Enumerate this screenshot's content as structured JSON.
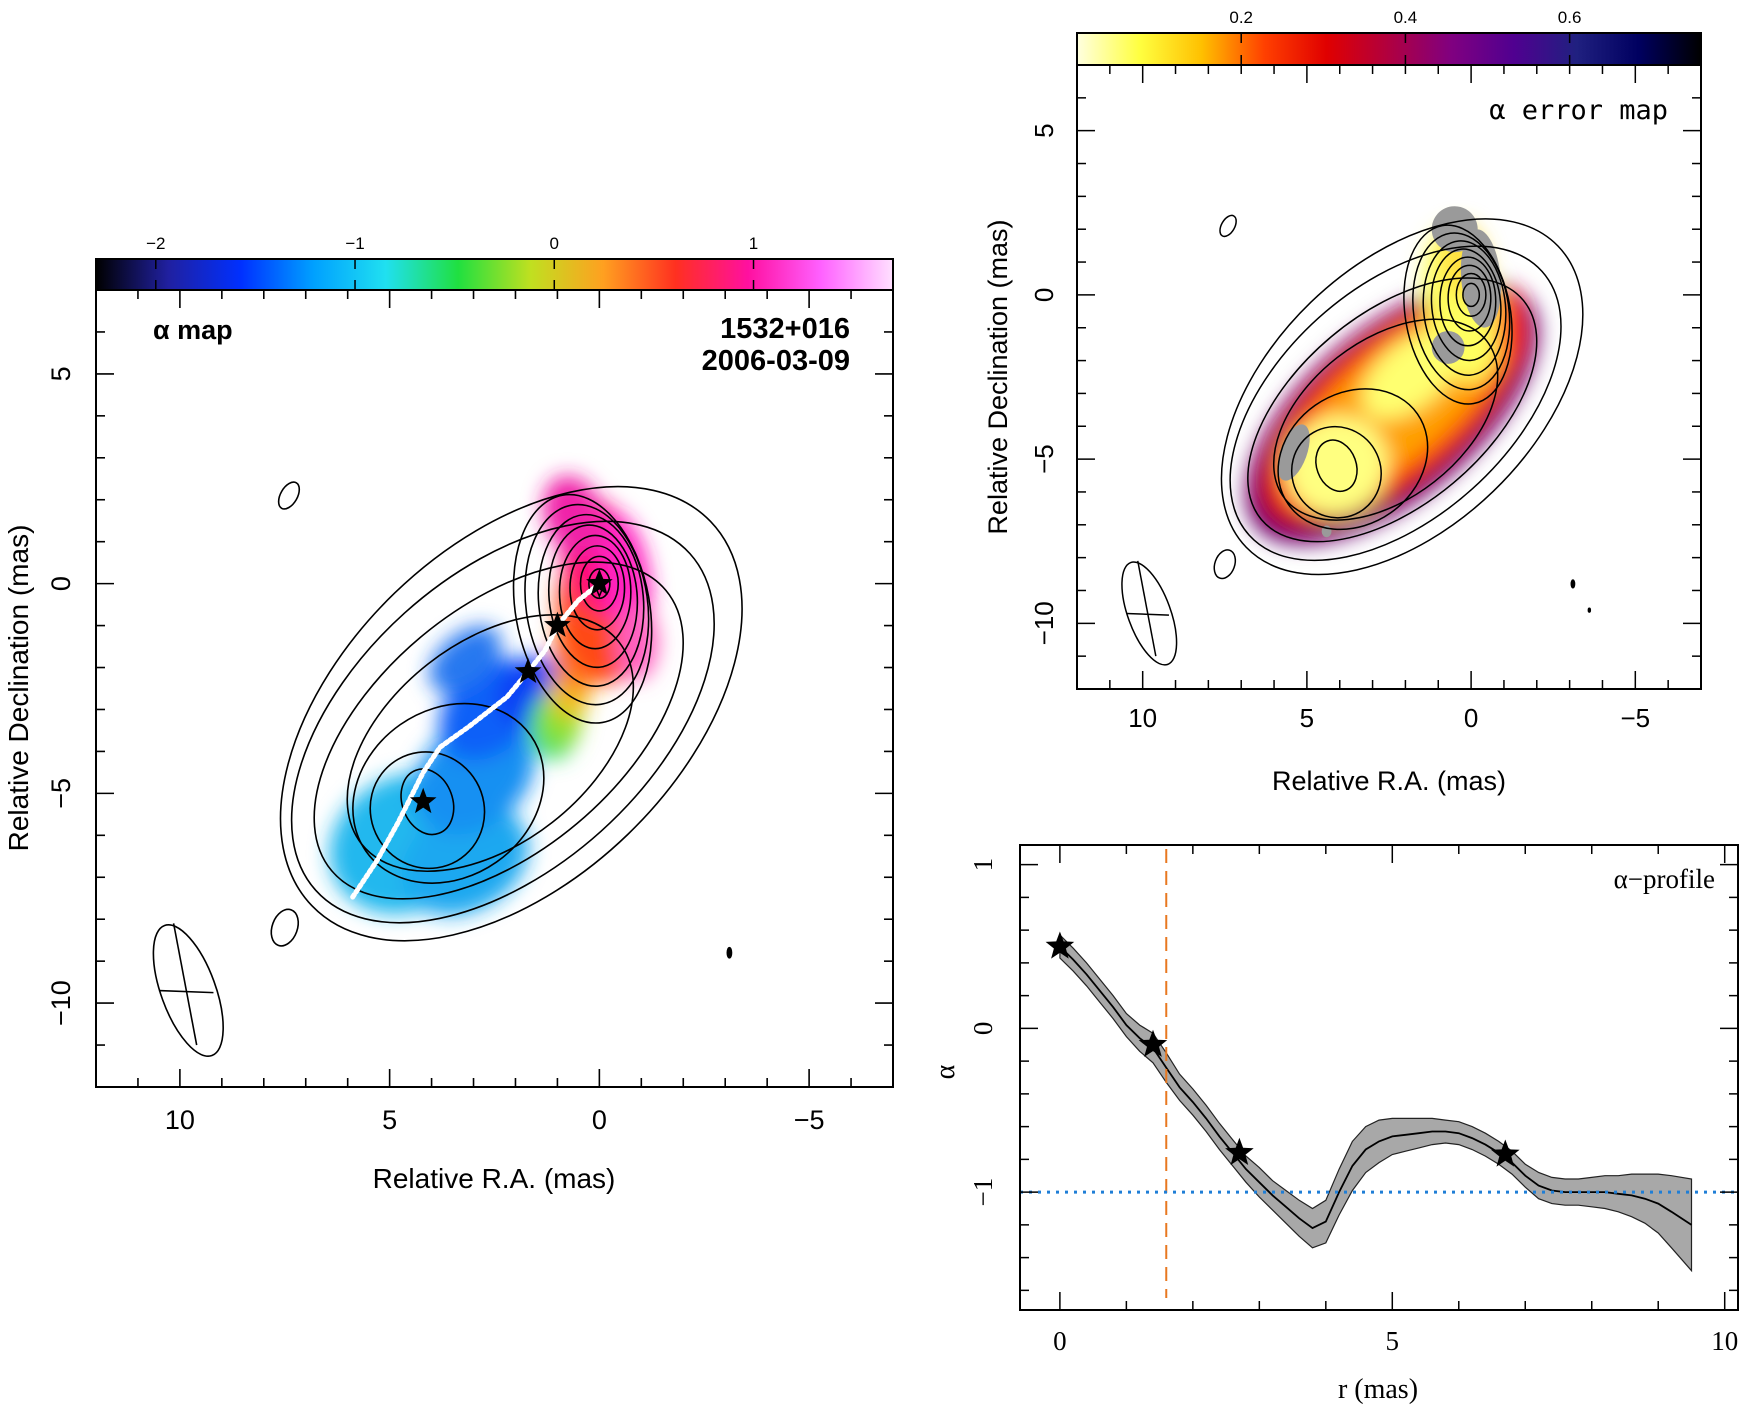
{
  "chart_data": [
    {
      "type": "heatmap",
      "id": "alpha-map",
      "title": "α map",
      "source": "1532+016",
      "date": "2006-03-09",
      "xlabel": "Relative R.A. (mas)",
      "ylabel": "Relative Declination (mas)",
      "xlim": [
        12,
        -7
      ],
      "ylim": [
        -12,
        7
      ],
      "xticks": [
        10,
        5,
        0,
        -5
      ],
      "yticks": [
        5,
        0,
        -5,
        -10
      ],
      "xtick_labels": [
        "10",
        "5",
        "0",
        "−5"
      ],
      "ytick_labels": [
        "5",
        "0",
        "−5",
        "−10"
      ],
      "colorbar": {
        "range": [
          -2.3,
          1.7
        ],
        "ticks": [
          -2,
          -1,
          0,
          1
        ],
        "tick_labels": [
          "−2",
          "−1",
          "0",
          "1"
        ],
        "colors": [
          "#000000",
          "#2020a0",
          "#0030ff",
          "#00a0ff",
          "#20e0f0",
          "#20e040",
          "#c0e020",
          "#ffa020",
          "#ff3020",
          "#ff10a0",
          "#ff60ff",
          "#ffe0ff"
        ]
      },
      "components": [
        {
          "x": 0.0,
          "y": 0.0
        },
        {
          "x": 1.0,
          "y": -1.0
        },
        {
          "x": 1.7,
          "y": -2.1
        },
        {
          "x": 4.2,
          "y": -5.2
        }
      ],
      "ridge_line": [
        [
          0.0,
          0.0
        ],
        [
          0.5,
          -0.4
        ],
        [
          1.0,
          -1.0
        ],
        [
          1.3,
          -1.6
        ],
        [
          1.7,
          -2.1
        ],
        [
          2.2,
          -2.7
        ],
        [
          3.1,
          -3.4
        ],
        [
          3.8,
          -3.9
        ],
        [
          4.2,
          -4.5
        ],
        [
          4.8,
          -5.7
        ],
        [
          5.3,
          -6.6
        ],
        [
          5.9,
          -7.5
        ]
      ],
      "beam": {
        "x": 9.8,
        "y": -9.7,
        "major": 3.0,
        "minor": 1.3,
        "pa_deg": 5
      }
    },
    {
      "type": "heatmap",
      "id": "alpha-error-map",
      "title": "α error map",
      "xlabel": "Relative R.A. (mas)",
      "ylabel": "Relative Declination (mas)",
      "xlim": [
        12,
        -7
      ],
      "ylim": [
        -12,
        7
      ],
      "xticks": [
        10,
        5,
        0,
        -5
      ],
      "yticks": [
        5,
        0,
        -5,
        -10
      ],
      "xtick_labels": [
        "10",
        "5",
        "0",
        "−5"
      ],
      "ytick_labels": [
        "5",
        "0",
        "−5",
        "−10"
      ],
      "colorbar": {
        "range": [
          0.0,
          0.76
        ],
        "ticks": [
          0.2,
          0.4,
          0.6
        ],
        "tick_labels": [
          "0.2",
          "0.4",
          "0.6"
        ],
        "colors": [
          "#ffffe0",
          "#ffff40",
          "#ffc000",
          "#ff4000",
          "#e00000",
          "#b00040",
          "#800080",
          "#500090",
          "#202080",
          "#000060",
          "#000000"
        ]
      },
      "beam": {
        "x": 9.8,
        "y": -9.7,
        "major": 3.0,
        "minor": 1.3,
        "pa_deg": 5
      }
    },
    {
      "type": "line",
      "id": "alpha-profile",
      "title": "α−profile",
      "xlabel": "r (mas)",
      "ylabel": "α",
      "xlim": [
        -0.6,
        10.2
      ],
      "ylim": [
        -1.72,
        1.12
      ],
      "xticks": [
        0,
        5,
        10
      ],
      "yticks": [
        1,
        0,
        -1
      ],
      "xtick_labels": [
        "0",
        "5",
        "10"
      ],
      "ytick_labels": [
        "1",
        "0",
        "−1"
      ],
      "x": [
        0.0,
        0.2,
        0.4,
        0.6,
        0.8,
        1.0,
        1.2,
        1.4,
        1.6,
        1.8,
        2.0,
        2.2,
        2.4,
        2.6,
        2.8,
        3.0,
        3.2,
        3.4,
        3.6,
        3.8,
        4.0,
        4.2,
        4.4,
        4.6,
        4.8,
        5.0,
        5.2,
        5.4,
        5.6,
        5.8,
        6.0,
        6.2,
        6.4,
        6.6,
        6.8,
        7.0,
        7.2,
        7.4,
        7.6,
        7.8,
        8.0,
        8.2,
        8.4,
        8.6,
        8.8,
        9.0,
        9.2,
        9.5
      ],
      "y": [
        0.5,
        0.42,
        0.33,
        0.23,
        0.13,
        0.02,
        -0.06,
        -0.12,
        -0.24,
        -0.36,
        -0.45,
        -0.55,
        -0.66,
        -0.76,
        -0.86,
        -0.94,
        -1.02,
        -1.09,
        -1.16,
        -1.22,
        -1.18,
        -1.0,
        -0.84,
        -0.74,
        -0.69,
        -0.66,
        -0.65,
        -0.64,
        -0.63,
        -0.63,
        -0.64,
        -0.67,
        -0.71,
        -0.76,
        -0.82,
        -0.9,
        -0.96,
        -0.99,
        -1.0,
        -1.0,
        -1.0,
        -1.0,
        -1.01,
        -1.02,
        -1.04,
        -1.07,
        -1.12,
        -1.2
      ],
      "err": [
        0.07,
        0.07,
        0.07,
        0.07,
        0.07,
        0.07,
        0.08,
        0.09,
        0.09,
        0.08,
        0.08,
        0.08,
        0.08,
        0.08,
        0.08,
        0.09,
        0.09,
        0.1,
        0.11,
        0.12,
        0.13,
        0.14,
        0.15,
        0.14,
        0.13,
        0.11,
        0.1,
        0.09,
        0.08,
        0.07,
        0.07,
        0.07,
        0.07,
        0.07,
        0.07,
        0.07,
        0.08,
        0.08,
        0.08,
        0.08,
        0.09,
        0.1,
        0.11,
        0.13,
        0.15,
        0.18,
        0.22,
        0.28
      ],
      "stars": [
        {
          "x": 0.0,
          "y": 0.5
        },
        {
          "x": 1.4,
          "y": -0.1
        },
        {
          "x": 2.7,
          "y": -0.76
        },
        {
          "x": 6.7,
          "y": -0.77
        }
      ],
      "vline": {
        "x": 1.6,
        "color": "#e87820"
      },
      "hline": {
        "y": -1.0,
        "color": "#1f7ed6"
      }
    }
  ]
}
